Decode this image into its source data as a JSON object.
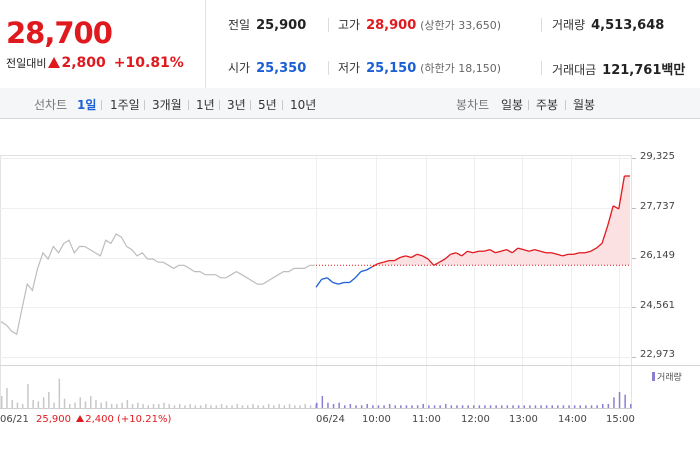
{
  "quote": {
    "price": "28,700",
    "change_label": "전일대비",
    "change_amount": "2,800",
    "change_percent": "+10.81%",
    "colors": {
      "up": "#e0191e",
      "down": "#1a5fd4"
    }
  },
  "stats": {
    "prev_close": {
      "label": "전일",
      "value": "25,900"
    },
    "high": {
      "label": "고가",
      "value": "28,900",
      "sub": "(상한가 33,650)"
    },
    "volume": {
      "label": "거래량",
      "value": "4,513,648"
    },
    "open": {
      "label": "시가",
      "value": "25,350"
    },
    "low": {
      "label": "저가",
      "value": "25,150",
      "sub": "(하한가 18,150)"
    },
    "trade_value": {
      "label": "거래대금",
      "value": "121,761",
      "unit": "백만"
    }
  },
  "tabs": {
    "line_chart_label": "선차트",
    "line_periods": [
      "1일",
      "1주일",
      "3개월",
      "1년",
      "3년",
      "5년",
      "10년"
    ],
    "active_period": "1일",
    "candle_chart_label": "봉차트",
    "candle_periods": [
      "일봉",
      "주봉",
      "월봉"
    ]
  },
  "chart_data": {
    "type": "line",
    "title": "",
    "y_ticks": [
      "29,325",
      "27,737",
      "26,149",
      "24,561",
      "22,973"
    ],
    "ylim": [
      22973,
      29325
    ],
    "baseline": 25900,
    "x_ticks": [
      "06/21",
      "06/24",
      "10:00",
      "11:00",
      "12:00",
      "13:00",
      "14:00",
      "15:00"
    ],
    "previous_day": {
      "date": "06/21",
      "values": [
        24100,
        24000,
        23800,
        23700,
        24500,
        25300,
        25100,
        25800,
        26300,
        26100,
        26500,
        26300,
        26600,
        26700,
        26300,
        26500,
        26500,
        26400,
        26300,
        26200,
        26700,
        26600,
        26900,
        26800,
        26500,
        26400,
        26200,
        26300,
        26100,
        26100,
        26000,
        26000,
        25900,
        25800,
        25900,
        25900,
        25800,
        25700,
        25700,
        25600,
        25600,
        25600,
        25500,
        25500,
        25600,
        25700,
        25600,
        25500,
        25400,
        25300,
        25300,
        25400,
        25500,
        25600,
        25700,
        25700,
        25800,
        25800,
        25800,
        25900,
        25900
      ],
      "close": "25,900",
      "change": "2,400",
      "change_percent": "(+10.21%)"
    },
    "today": {
      "date": "06/24",
      "values": [
        25200,
        25450,
        25500,
        25350,
        25300,
        25350,
        25350,
        25500,
        25700,
        25750,
        25850,
        25950,
        26000,
        26050,
        26050,
        26150,
        26200,
        26150,
        26250,
        26200,
        26100,
        25900,
        26000,
        26100,
        26250,
        26300,
        26200,
        26350,
        26300,
        26350,
        26350,
        26400,
        26300,
        26350,
        26400,
        26300,
        26450,
        26400,
        26350,
        26400,
        26350,
        26300,
        26300,
        26250,
        26200,
        26250,
        26250,
        26300,
        26300,
        26350,
        26450,
        26600,
        27150,
        27800,
        27700,
        28750,
        28750
      ],
      "colors": {
        "above": "#e0191e",
        "below": "#1a5fd4",
        "prev": "#bdbdbd"
      }
    },
    "volume": {
      "label": "거래량",
      "color": "#8a7fd1",
      "prev_color": "#c8c8c8",
      "previous_day": [
        9,
        15,
        6,
        4,
        3,
        18,
        6,
        5,
        8,
        12,
        4,
        22,
        7,
        3,
        4,
        8,
        5,
        9,
        6,
        4,
        5,
        3,
        3,
        4,
        6,
        3,
        4,
        3,
        2,
        3,
        3,
        4,
        3,
        2,
        3,
        2,
        3,
        2,
        2,
        3,
        2,
        2,
        3,
        2,
        2,
        3,
        2,
        2,
        3,
        2,
        2,
        3,
        2,
        3,
        2,
        3,
        2,
        2,
        3,
        2,
        3
      ],
      "today": [
        4,
        9,
        4,
        3,
        4,
        2,
        3,
        2,
        2,
        3,
        2,
        2,
        2,
        3,
        2,
        2,
        2,
        2,
        2,
        3,
        2,
        2,
        2,
        3,
        2,
        2,
        2,
        2,
        2,
        2,
        2,
        2,
        2,
        2,
        2,
        2,
        2,
        2,
        2,
        2,
        2,
        2,
        2,
        2,
        2,
        2,
        2,
        2,
        2,
        2,
        2,
        3,
        3,
        8,
        12,
        10,
        3
      ]
    }
  }
}
